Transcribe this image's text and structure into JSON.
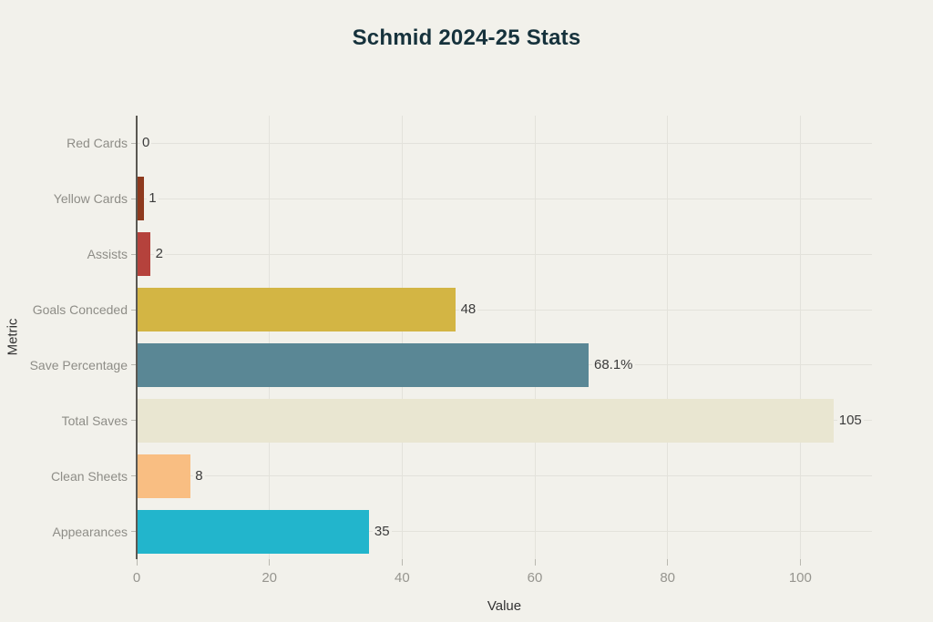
{
  "chart_data": {
    "type": "bar",
    "orientation": "horizontal",
    "title": "Schmid 2024-25 Stats",
    "xlabel": "Value",
    "ylabel": "Metric",
    "categories_top_to_bottom": [
      "Red Cards",
      "Yellow Cards",
      "Assists",
      "Goals Conceded",
      "Save Percentage",
      "Total Saves",
      "Clean Sheets",
      "Appearances"
    ],
    "values": [
      0,
      1,
      2,
      48,
      68.1,
      105,
      8,
      35
    ],
    "value_labels": [
      "0",
      "1",
      "2",
      "48",
      "68.1%",
      "105",
      "8",
      "35"
    ],
    "bar_colors": [
      null,
      "#8E3A1E",
      "#B5423C",
      "#D3B544",
      "#5A8795",
      "#E9E6D1",
      "#F9BE82",
      "#22B5CC"
    ],
    "xticks": [
      0,
      20,
      40,
      60,
      80,
      100
    ],
    "xlim": [
      0,
      110.8
    ],
    "grid": true,
    "legend_position": "none",
    "style": {
      "background": "#F2F1EB",
      "grid_color": "#E3E2DB",
      "axis_line_color": "#5A5852",
      "tick_mark_color": "#B9B8B0",
      "title_color": "#16323C",
      "category_label_color": "#8E8D87",
      "tick_label_color": "#96958F",
      "value_label_color": "#3B3B3B",
      "axis_title_color": "#333333"
    }
  }
}
